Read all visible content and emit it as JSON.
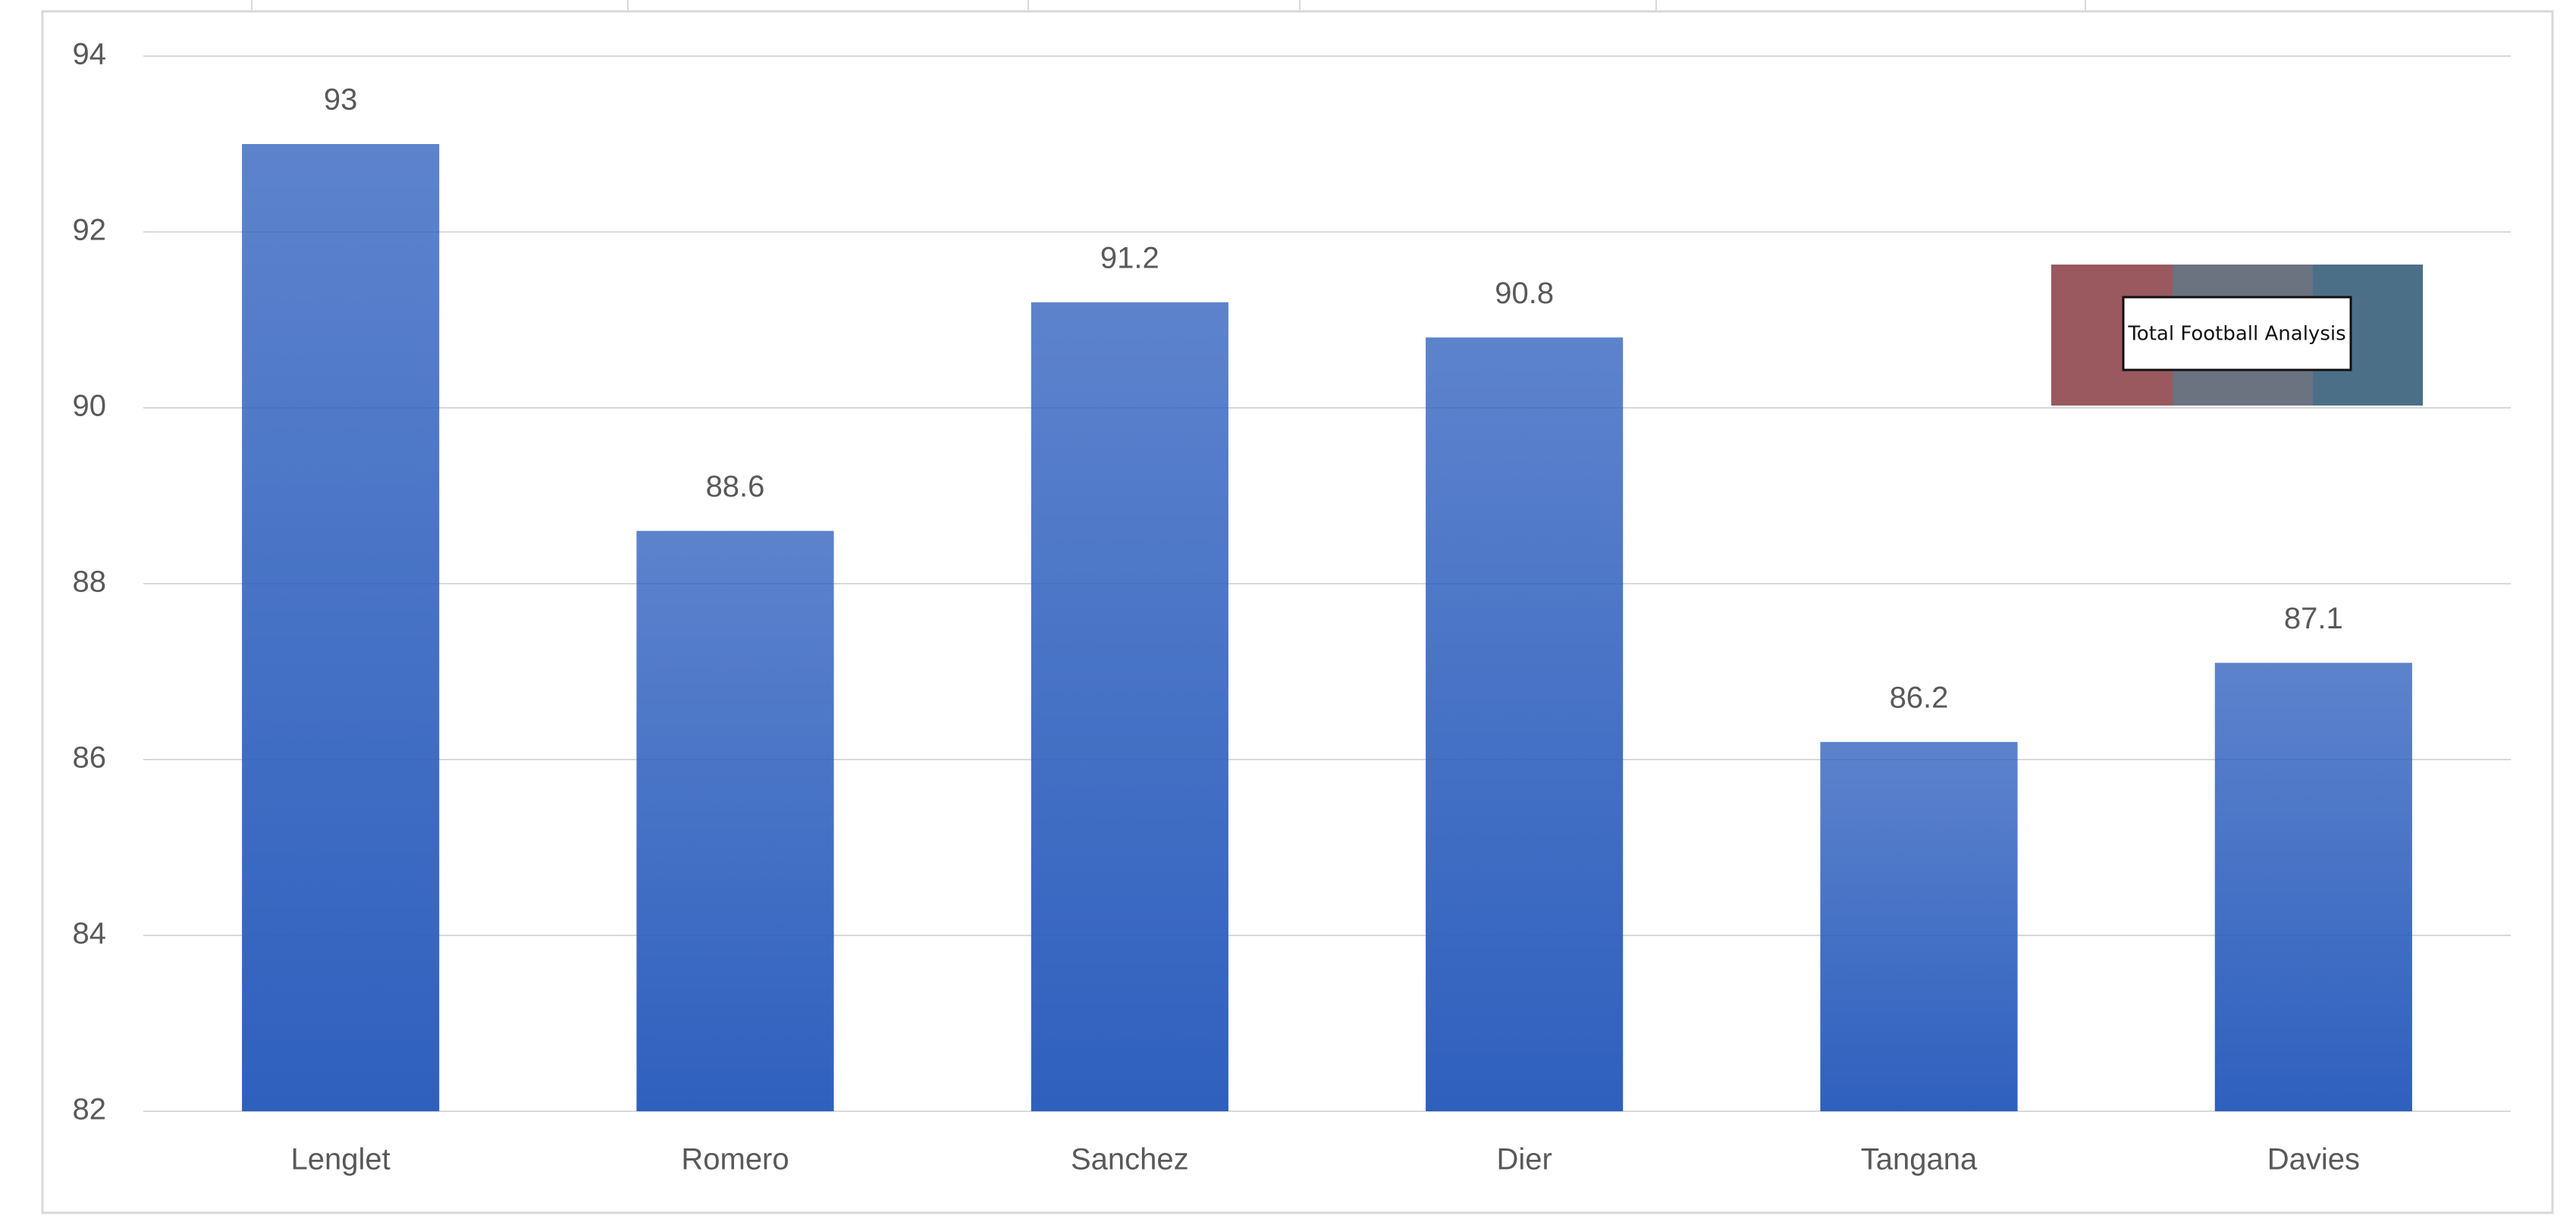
{
  "chart_data": {
    "type": "bar",
    "categories": [
      "Lenglet",
      "Romero",
      "Sanchez",
      "Dier",
      "Tangana",
      "Davies"
    ],
    "values": [
      93,
      88.6,
      91.2,
      90.8,
      86.2,
      87.1
    ],
    "color": "#2f60be",
    "ylim": [
      82,
      94
    ],
    "yticks": [
      82,
      84,
      86,
      88,
      90,
      92,
      94
    ],
    "grid": true,
    "watermark": "Total Football Analysis"
  }
}
